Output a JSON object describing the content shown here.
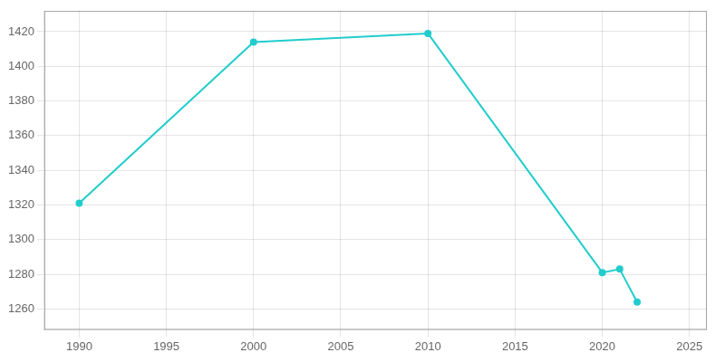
{
  "chart_data": {
    "type": "line",
    "x": [
      1990,
      2000,
      2010,
      2020,
      2021,
      2022
    ],
    "values": [
      1321,
      1414,
      1419,
      1281,
      1283,
      1264
    ],
    "color": "#22cccc",
    "marker": "o",
    "xlim": [
      1988,
      2026
    ],
    "ylim": [
      1248,
      1432
    ],
    "xticks": [
      1990,
      1995,
      2000,
      2005,
      2010,
      2015,
      2020,
      2025
    ],
    "yticks": [
      1260,
      1280,
      1300,
      1320,
      1340,
      1360,
      1380,
      1400,
      1420
    ],
    "grid": true
  }
}
